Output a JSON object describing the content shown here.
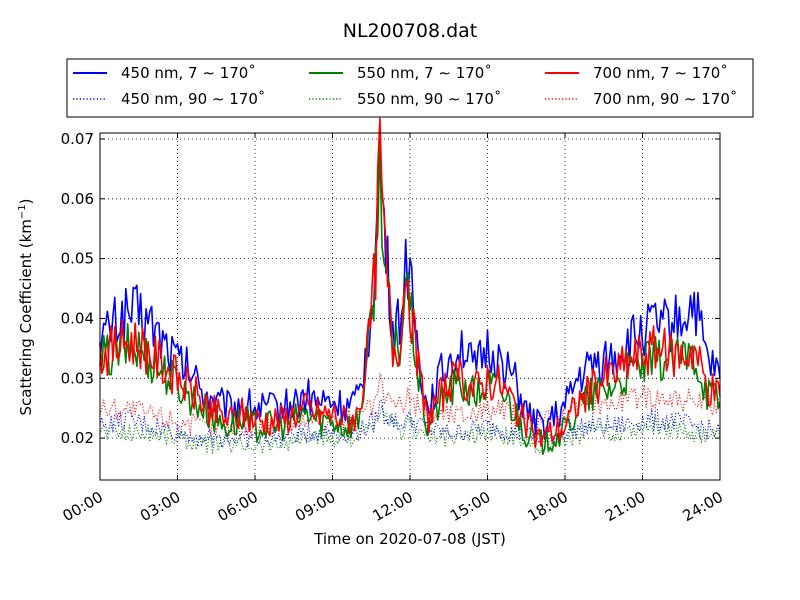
{
  "chart_data": {
    "type": "line",
    "title": "NL200708.dat",
    "xlabel": "Time on 2020-07-08 (JST)",
    "ylabel": "Scattering Coefficient (km",
    "ylabel_sup": "−1",
    "ylabel_close": ")",
    "xlim": [
      "2020-07-08T00:00",
      "2020-07-09T00:00"
    ],
    "ylim": [
      0.013,
      0.071
    ],
    "x_ticks": [
      {
        "t": "2020-07-08T00:00",
        "label": "00:00"
      },
      {
        "t": "2020-07-08T03:00",
        "label": "03:00"
      },
      {
        "t": "2020-07-08T06:00",
        "label": "06:00"
      },
      {
        "t": "2020-07-08T09:00",
        "label": "09:00"
      },
      {
        "t": "2020-07-08T12:00",
        "label": "12:00"
      },
      {
        "t": "2020-07-08T15:00",
        "label": "15:00"
      },
      {
        "t": "2020-07-08T18:00",
        "label": "18:00"
      },
      {
        "t": "2020-07-08T21:00",
        "label": "21:00"
      },
      {
        "t": "2020-07-09T00:00",
        "label": "24:00"
      }
    ],
    "y_ticks": [
      {
        "v": 0.02,
        "label": "0.02"
      },
      {
        "v": 0.03,
        "label": "0.03"
      },
      {
        "v": 0.04,
        "label": "0.04"
      },
      {
        "v": 0.05,
        "label": "0.05"
      },
      {
        "v": 0.06,
        "label": "0.06"
      },
      {
        "v": 0.07,
        "label": "0.07"
      }
    ],
    "grid": true,
    "grid_style": "dotted",
    "legend_position": "above-plot",
    "legend_columns": 3,
    "series": [
      {
        "name": "450 nm, 7 ∼ 170˚",
        "color": "#0000ff",
        "style": "solid",
        "x": [
          "00:00",
          "00:30",
          "01:00",
          "01:30",
          "02:00",
          "02:30",
          "03:00",
          "03:30",
          "04:00",
          "04:30",
          "05:00",
          "05:30",
          "06:00",
          "06:30",
          "07:00",
          "07:30",
          "08:00",
          "08:30",
          "09:00",
          "09:30",
          "10:00",
          "10:20",
          "10:40",
          "10:50",
          "11:00",
          "11:20",
          "11:40",
          "11:50",
          "12:00",
          "12:20",
          "12:40",
          "13:00",
          "13:30",
          "14:00",
          "14:30",
          "15:00",
          "15:30",
          "16:00",
          "16:30",
          "17:00",
          "17:30",
          "18:00",
          "18:30",
          "19:00",
          "19:30",
          "20:00",
          "20:30",
          "21:00",
          "21:30",
          "22:00",
          "22:30",
          "23:00",
          "23:30",
          "24:00"
        ],
        "y": [
          0.036,
          0.039,
          0.041,
          0.041,
          0.039,
          0.036,
          0.033,
          0.031,
          0.028,
          0.026,
          0.025,
          0.026,
          0.025,
          0.025,
          0.025,
          0.026,
          0.027,
          0.026,
          0.026,
          0.025,
          0.026,
          0.035,
          0.05,
          0.068,
          0.055,
          0.038,
          0.04,
          0.052,
          0.046,
          0.034,
          0.025,
          0.029,
          0.033,
          0.036,
          0.031,
          0.035,
          0.033,
          0.03,
          0.024,
          0.022,
          0.023,
          0.025,
          0.03,
          0.032,
          0.033,
          0.034,
          0.036,
          0.038,
          0.039,
          0.039,
          0.04,
          0.043,
          0.033,
          0.03
        ]
      },
      {
        "name": "550 nm, 7 ∼ 170˚",
        "color": "#008000",
        "style": "solid",
        "x": [
          "00:00",
          "00:30",
          "01:00",
          "01:30",
          "02:00",
          "02:30",
          "03:00",
          "03:30",
          "04:00",
          "04:30",
          "05:00",
          "05:30",
          "06:00",
          "06:30",
          "07:00",
          "07:30",
          "08:00",
          "08:30",
          "09:00",
          "09:30",
          "10:00",
          "10:20",
          "10:40",
          "10:50",
          "11:00",
          "11:20",
          "11:40",
          "11:50",
          "12:00",
          "12:20",
          "12:40",
          "13:00",
          "13:30",
          "14:00",
          "14:30",
          "15:00",
          "15:30",
          "16:00",
          "16:30",
          "17:00",
          "17:30",
          "18:00",
          "18:30",
          "19:00",
          "19:30",
          "20:00",
          "20:30",
          "21:00",
          "21:30",
          "22:00",
          "22:30",
          "23:00",
          "23:30",
          "24:00"
        ],
        "y": [
          0.033,
          0.034,
          0.035,
          0.035,
          0.033,
          0.031,
          0.029,
          0.027,
          0.025,
          0.023,
          0.022,
          0.023,
          0.022,
          0.022,
          0.022,
          0.023,
          0.024,
          0.023,
          0.023,
          0.022,
          0.023,
          0.032,
          0.048,
          0.066,
          0.052,
          0.034,
          0.036,
          0.048,
          0.042,
          0.03,
          0.022,
          0.025,
          0.028,
          0.029,
          0.027,
          0.029,
          0.028,
          0.025,
          0.021,
          0.019,
          0.02,
          0.021,
          0.025,
          0.027,
          0.028,
          0.029,
          0.031,
          0.032,
          0.033,
          0.033,
          0.033,
          0.034,
          0.028,
          0.026
        ]
      },
      {
        "name": "700 nm, 7 ∼ 170˚",
        "color": "#ff0000",
        "style": "solid",
        "x": [
          "00:00",
          "00:30",
          "01:00",
          "01:30",
          "02:00",
          "02:30",
          "03:00",
          "03:30",
          "04:00",
          "04:30",
          "05:00",
          "05:30",
          "06:00",
          "06:30",
          "07:00",
          "07:30",
          "08:00",
          "08:30",
          "09:00",
          "09:30",
          "10:00",
          "10:20",
          "10:40",
          "10:50",
          "11:00",
          "11:20",
          "11:40",
          "11:50",
          "12:00",
          "12:20",
          "12:40",
          "13:00",
          "13:30",
          "14:00",
          "14:30",
          "15:00",
          "15:30",
          "16:00",
          "16:30",
          "17:00",
          "17:30",
          "18:00",
          "18:30",
          "19:00",
          "19:30",
          "20:00",
          "20:30",
          "21:00",
          "21:30",
          "22:00",
          "22:30",
          "23:00",
          "23:30",
          "24:00"
        ],
        "y": [
          0.034,
          0.035,
          0.036,
          0.036,
          0.034,
          0.032,
          0.03,
          0.028,
          0.026,
          0.024,
          0.023,
          0.024,
          0.023,
          0.023,
          0.023,
          0.024,
          0.025,
          0.024,
          0.024,
          0.023,
          0.024,
          0.033,
          0.049,
          0.069,
          0.053,
          0.035,
          0.037,
          0.05,
          0.043,
          0.031,
          0.023,
          0.026,
          0.029,
          0.03,
          0.028,
          0.03,
          0.029,
          0.026,
          0.022,
          0.02,
          0.021,
          0.022,
          0.026,
          0.028,
          0.03,
          0.031,
          0.033,
          0.034,
          0.035,
          0.034,
          0.034,
          0.035,
          0.029,
          0.027
        ]
      },
      {
        "name": "450 nm, 90 ∼ 170˚",
        "color": "#0000ff",
        "style": "dotted",
        "x": [
          "00:00",
          "01:00",
          "02:00",
          "03:00",
          "04:00",
          "05:00",
          "06:00",
          "07:00",
          "08:00",
          "09:00",
          "10:00",
          "10:40",
          "10:50",
          "11:00",
          "11:40",
          "11:50",
          "12:00",
          "13:00",
          "14:00",
          "15:00",
          "16:00",
          "17:00",
          "18:00",
          "19:00",
          "20:00",
          "21:00",
          "22:00",
          "23:00",
          "24:00"
        ],
        "y": [
          0.022,
          0.023,
          0.022,
          0.021,
          0.02,
          0.02,
          0.02,
          0.02,
          0.021,
          0.021,
          0.021,
          0.023,
          0.026,
          0.024,
          0.022,
          0.024,
          0.023,
          0.021,
          0.021,
          0.022,
          0.021,
          0.02,
          0.021,
          0.022,
          0.022,
          0.023,
          0.023,
          0.022,
          0.021
        ]
      },
      {
        "name": "550 nm, 90 ∼ 170˚",
        "color": "#008000",
        "style": "dotted",
        "x": [
          "00:00",
          "01:00",
          "02:00",
          "03:00",
          "04:00",
          "05:00",
          "06:00",
          "07:00",
          "08:00",
          "09:00",
          "10:00",
          "10:40",
          "10:50",
          "11:00",
          "11:40",
          "11:50",
          "12:00",
          "13:00",
          "14:00",
          "15:00",
          "16:00",
          "17:00",
          "18:00",
          "19:00",
          "20:00",
          "21:00",
          "22:00",
          "23:00",
          "24:00"
        ],
        "y": [
          0.021,
          0.021,
          0.021,
          0.02,
          0.019,
          0.019,
          0.019,
          0.019,
          0.02,
          0.02,
          0.02,
          0.022,
          0.025,
          0.023,
          0.021,
          0.023,
          0.022,
          0.02,
          0.02,
          0.021,
          0.02,
          0.019,
          0.02,
          0.021,
          0.021,
          0.022,
          0.022,
          0.021,
          0.02
        ]
      },
      {
        "name": "700 nm, 90 ∼ 170˚",
        "color": "#ff0000",
        "style": "dotted",
        "x": [
          "00:00",
          "01:00",
          "02:00",
          "03:00",
          "04:00",
          "05:00",
          "06:00",
          "07:00",
          "08:00",
          "09:00",
          "10:00",
          "10:40",
          "10:50",
          "11:00",
          "11:40",
          "11:50",
          "12:00",
          "13:00",
          "14:00",
          "15:00",
          "16:00",
          "17:00",
          "18:00",
          "19:00",
          "20:00",
          "21:00",
          "22:00",
          "23:00",
          "24:00"
        ],
        "y": [
          0.025,
          0.025,
          0.024,
          0.023,
          0.022,
          0.022,
          0.022,
          0.022,
          0.023,
          0.023,
          0.023,
          0.026,
          0.029,
          0.027,
          0.025,
          0.027,
          0.026,
          0.024,
          0.024,
          0.025,
          0.024,
          0.023,
          0.024,
          0.026,
          0.026,
          0.027,
          0.027,
          0.026,
          0.025
        ]
      }
    ]
  }
}
